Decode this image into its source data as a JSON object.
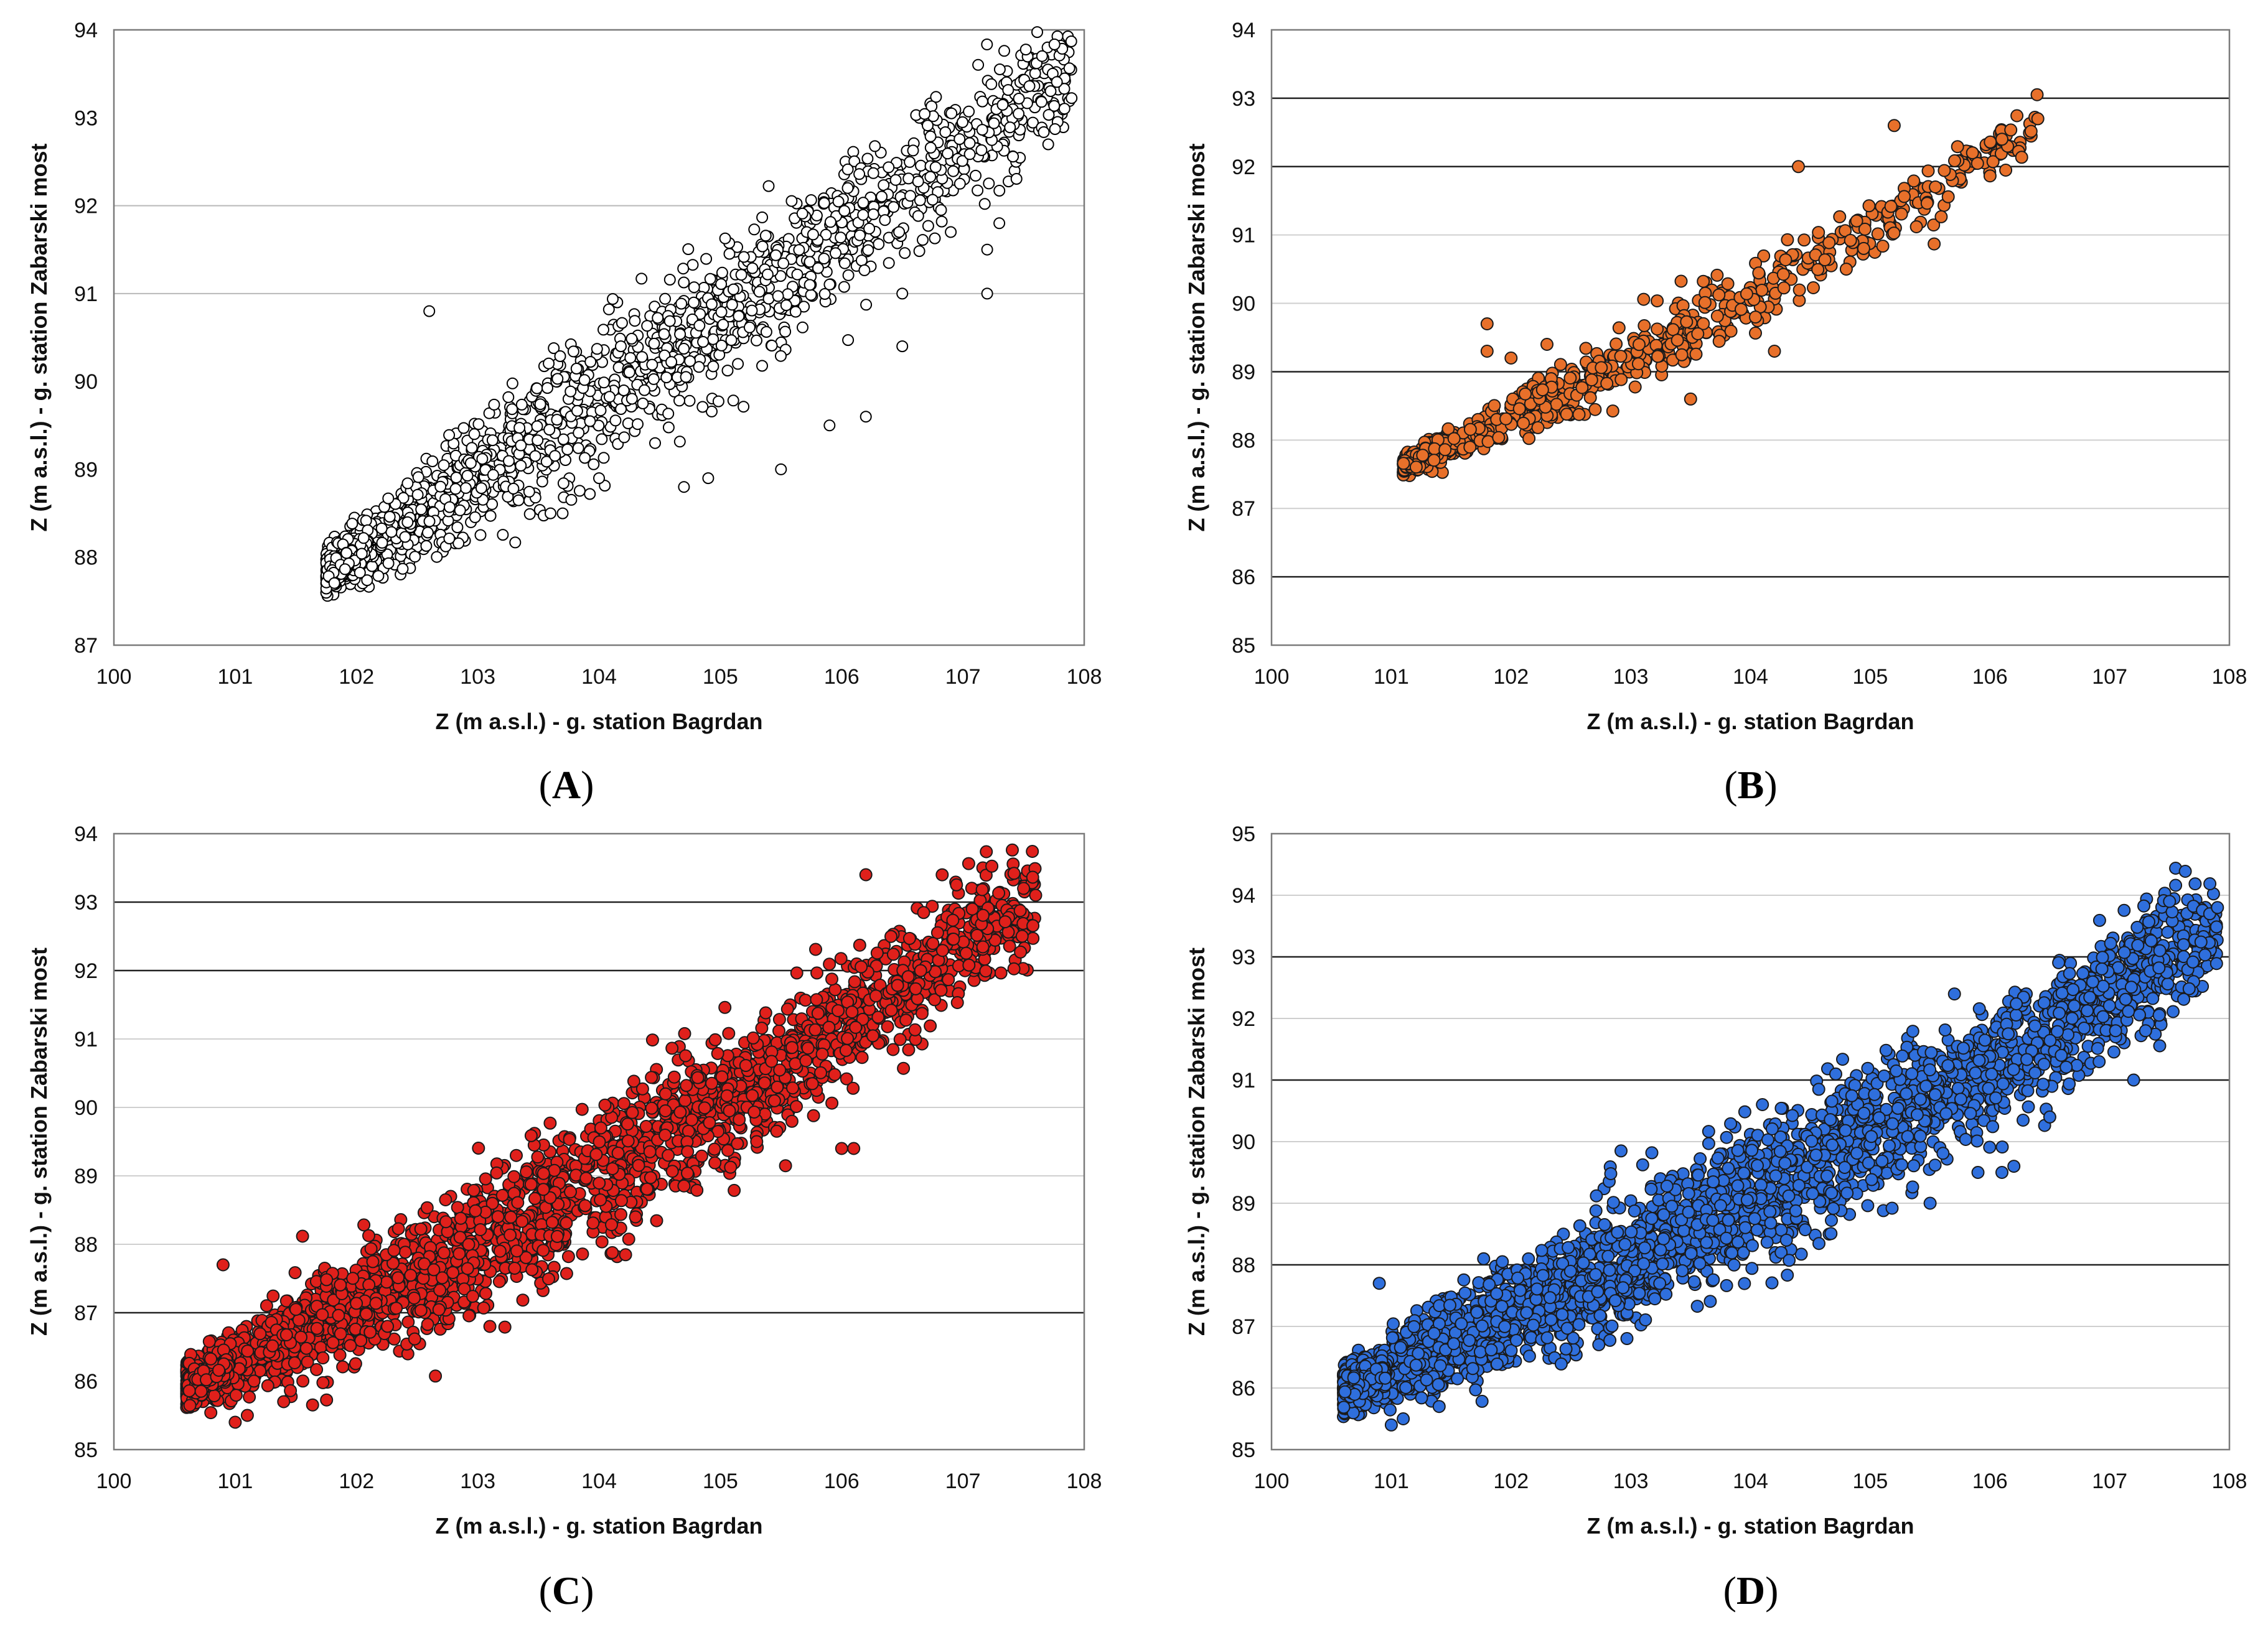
{
  "chart_data": [
    {
      "type": "scatter",
      "panel": "A",
      "panel_label_open": "(",
      "panel_label_letter": "A",
      "panel_label_close": ")",
      "xlabel": "Z (m a.s.l.) - g. station Bagrdan",
      "ylabel": "Z (m a.s.l.) - g. station Zabarski most",
      "xlim": [
        100,
        108
      ],
      "ylim": [
        87,
        94
      ],
      "xticks": [
        "100",
        "101",
        "102",
        "103",
        "104",
        "105",
        "106",
        "107",
        "108"
      ],
      "yticks": [
        "87",
        "88",
        "89",
        "90",
        "91",
        "92",
        "93",
        "94"
      ],
      "grid_y": [
        91,
        92
      ],
      "grid_style": "light",
      "marker": "hollow-circle",
      "marker_color": "#000000",
      "marker_fill": "#ffffff",
      "point_count": 1700,
      "trend": {
        "x_range": [
          101.75,
          107.9
        ],
        "y_at_xmin": 87.85,
        "y_at_xmax": 93.6,
        "curvature": -0.03,
        "spread": 0.38
      },
      "outliers": [
        [
          105.5,
          89.0
        ],
        [
          104.9,
          88.9
        ],
        [
          104.7,
          88.8
        ],
        [
          104.0,
          88.9
        ],
        [
          105.9,
          89.5
        ],
        [
          106.2,
          89.6
        ],
        [
          107.2,
          91.5
        ],
        [
          107.2,
          91.0
        ],
        [
          107.3,
          91.8
        ],
        [
          106.5,
          90.4
        ],
        [
          106.5,
          91.0
        ],
        [
          103.6,
          88.5
        ],
        [
          103.7,
          88.5
        ],
        [
          102.6,
          90.8
        ],
        [
          106.9,
          91.7
        ]
      ]
    },
    {
      "type": "scatter",
      "panel": "B",
      "panel_label_open": "(",
      "panel_label_letter": "B",
      "panel_label_close": ")",
      "xlabel": "Z (m a.s.l.) - g. station Bagrdan",
      "ylabel": "Z (m a.s.l.) - g. station Zabarski most",
      "xlim": [
        100,
        108
      ],
      "ylim": [
        85,
        94
      ],
      "xticks": [
        "100",
        "101",
        "102",
        "103",
        "104",
        "105",
        "106",
        "107",
        "108"
      ],
      "yticks": [
        "85",
        "86",
        "87",
        "88",
        "89",
        "90",
        "91",
        "92",
        "93",
        "94"
      ],
      "grid_y": [
        86,
        89,
        92,
        93
      ],
      "grid_minor_y": [
        87,
        88,
        90,
        91
      ],
      "grid_style": "mixed",
      "marker": "filled-circle",
      "marker_color": "#e8702a",
      "point_count": 700,
      "trend": {
        "x_range": [
          101.1,
          106.4
        ],
        "y_at_xmin": 87.62,
        "y_at_xmax": 92.6,
        "curvature": -0.05,
        "spread": 0.22
      },
      "outliers": [
        [
          101.8,
          89.7
        ],
        [
          101.8,
          89.3
        ],
        [
          102.0,
          89.2
        ],
        [
          102.3,
          89.4
        ],
        [
          104.2,
          89.3
        ],
        [
          103.5,
          88.6
        ],
        [
          104.8,
          90.5
        ],
        [
          104.4,
          92.0
        ],
        [
          106.4,
          92.7
        ],
        [
          106.1,
          92.4
        ],
        [
          105.2,
          92.6
        ]
      ]
    },
    {
      "type": "scatter",
      "panel": "C",
      "panel_label_open": "(",
      "panel_label_letter": "C",
      "panel_label_close": ")",
      "xlabel": "Z (m a.s.l.) - g. station Bagrdan",
      "ylabel": "Z (m a.s.l.) - g. station Zabarski most",
      "xlim": [
        100,
        108
      ],
      "ylim": [
        85,
        94
      ],
      "xticks": [
        "100",
        "101",
        "102",
        "103",
        "104",
        "105",
        "106",
        "107",
        "108"
      ],
      "yticks": [
        "85",
        "86",
        "87",
        "88",
        "89",
        "90",
        "91",
        "92",
        "93",
        "94"
      ],
      "grid_y": [
        87,
        92,
        93
      ],
      "grid_minor_y": [
        88,
        89,
        90,
        91
      ],
      "grid_style": "mixed",
      "marker": "filled-circle",
      "marker_color": "#e0201b",
      "point_count": 2600,
      "trend": {
        "x_range": [
          100.6,
          107.6
        ],
        "y_at_xmin": 85.95,
        "y_at_xmax": 93.1,
        "curvature": -0.06,
        "spread": 0.45
      },
      "outliers": [
        [
          106.2,
          93.4
        ],
        [
          107.5,
          93.2
        ],
        [
          107.6,
          93.1
        ],
        [
          106.1,
          89.4
        ],
        [
          106.0,
          89.4
        ],
        [
          104.3,
          88.4
        ],
        [
          105.3,
          89.5
        ],
        [
          101.0,
          85.4
        ],
        [
          101.1,
          85.5
        ],
        [
          101.4,
          85.7
        ],
        [
          103.1,
          86.8
        ],
        [
          100.9,
          87.7
        ]
      ]
    },
    {
      "type": "scatter",
      "panel": "D",
      "panel_label_open": "(",
      "panel_label_letter": "D",
      "panel_label_close": ")",
      "xlabel": "Z (m a.s.l.) - g. station Bagrdan",
      "ylabel": "Z (m a.s.l.) - g. station Zabarski most",
      "xlim": [
        100,
        108
      ],
      "ylim": [
        85,
        95
      ],
      "xticks": [
        "100",
        "101",
        "102",
        "103",
        "104",
        "105",
        "106",
        "107",
        "108"
      ],
      "yticks": [
        "85",
        "86",
        "87",
        "88",
        "89",
        "90",
        "91",
        "92",
        "93",
        "94",
        "95"
      ],
      "grid_y": [
        88,
        91,
        93
      ],
      "grid_minor_y": [
        86,
        87,
        89,
        90,
        92,
        94
      ],
      "grid_style": "mixed",
      "marker": "filled-circle",
      "marker_color": "#2f6fdd",
      "point_count": 3200,
      "trend": {
        "x_range": [
          100.6,
          107.9
        ],
        "y_at_xmin": 85.95,
        "y_at_xmax": 93.5,
        "curvature": -0.05,
        "spread": 0.5
      },
      "outliers": [
        [
          101.0,
          85.4
        ],
        [
          101.1,
          85.5
        ],
        [
          101.4,
          85.7
        ],
        [
          106.1,
          89.5
        ],
        [
          106.2,
          89.6
        ],
        [
          105.9,
          89.5
        ],
        [
          105.5,
          89.0
        ],
        [
          107.2,
          91.0
        ],
        [
          107.3,
          91.8
        ],
        [
          106.5,
          90.4
        ],
        [
          104.3,
          88.4
        ],
        [
          107.9,
          93.8
        ],
        [
          107.5,
          93.9
        ],
        [
          100.9,
          87.7
        ]
      ]
    }
  ]
}
